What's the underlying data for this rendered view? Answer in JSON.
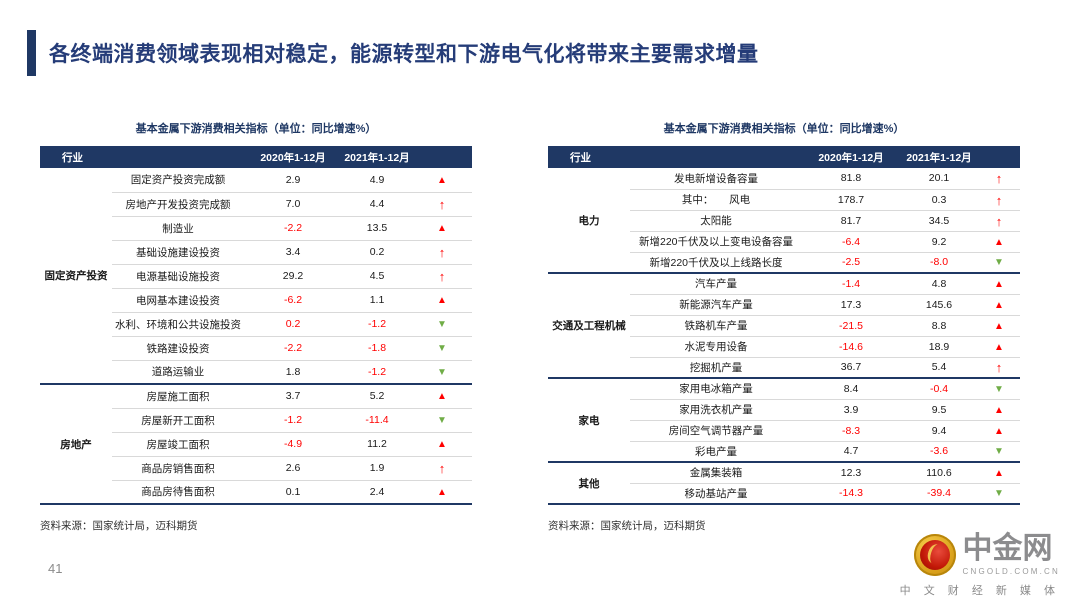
{
  "slide": {
    "title": "各终端消费领域表现相对稳定，能源转型和下游电气化将带来主要需求增量",
    "page_number": "41"
  },
  "colors": {
    "navy_header": "#1F3864",
    "title_blue": "#253C78",
    "up_arrow_red": "#FF0000",
    "down_arrow_green": "#70AD47"
  },
  "tables": [
    {
      "title": "基本金属下游消费相关指标（单位：同比增速%）",
      "col_headers": [
        "行业",
        "2020年1-12月",
        "2021年1-12月"
      ],
      "source": "资料来源：国家统计局，迈科期货",
      "groups": [
        {
          "name": "固定资产投资",
          "rows": [
            {
              "label": "固定资产投资完成额",
              "y2020": "2.9",
              "y2021": "4.9",
              "trend": "up-bold"
            },
            {
              "label": "房地产开发投资完成额",
              "y2020": "7.0",
              "y2021": "4.4",
              "trend": "up-thin"
            },
            {
              "label": "制造业",
              "y2020": "-2.2",
              "y2021": "13.5",
              "trend": "up-bold"
            },
            {
              "label": "基础设施建设投资",
              "y2020": "3.4",
              "y2021": "0.2",
              "trend": "up-thin"
            },
            {
              "label": "电源基础设施投资",
              "y2020": "29.2",
              "y2021": "4.5",
              "trend": "up-thin"
            },
            {
              "label": "电网基本建设投资",
              "y2020": "-6.2",
              "y2021": "1.1",
              "trend": "up-bold"
            },
            {
              "label": "水利、环境和公共设施投资",
              "y2020": "0.2",
              "red2020": true,
              "y2021": "-1.2",
              "trend": "down-bold"
            },
            {
              "label": "铁路建设投资",
              "y2020": "-2.2",
              "y2021": "-1.8",
              "trend": "down-bold"
            },
            {
              "label": "道路运输业",
              "y2020": "1.8",
              "y2021": "-1.2",
              "trend": "down-bold"
            }
          ]
        },
        {
          "name": "房地产",
          "rows": [
            {
              "label": "房屋施工面积",
              "y2020": "3.7",
              "y2021": "5.2",
              "trend": "up-bold"
            },
            {
              "label": "房屋新开工面积",
              "y2020": "-1.2",
              "y2021": "-11.4",
              "trend": "down-bold"
            },
            {
              "label": "房屋竣工面积",
              "y2020": "-4.9",
              "y2021": "11.2",
              "trend": "up-bold"
            },
            {
              "label": "商品房销售面积",
              "y2020": "2.6",
              "y2021": "1.9",
              "trend": "up-thin"
            },
            {
              "label": "商品房待售面积",
              "y2020": "0.1",
              "y2021": "2.4",
              "trend": "up-bold"
            }
          ]
        }
      ]
    },
    {
      "title": "基本金属下游消费相关指标（单位：同比增速%）",
      "col_headers": [
        "行业",
        "2020年1-12月",
        "2021年1-12月"
      ],
      "source": "资料来源：国家统计局，迈科期货",
      "groups": [
        {
          "name": "电力",
          "rows": [
            {
              "label": "发电新增设备容量",
              "y2020": "81.8",
              "y2021": "20.1",
              "trend": "up-thin"
            },
            {
              "label": "其中：　　风电",
              "y2020": "178.7",
              "y2021": "0.3",
              "trend": "up-thin"
            },
            {
              "label": "太阳能",
              "y2020": "81.7",
              "y2021": "34.5",
              "trend": "up-thin"
            },
            {
              "label": "新增220千伏及以上变电设备容量",
              "y2020": "-6.4",
              "y2021": "9.2",
              "trend": "up-bold"
            },
            {
              "label": "新增220千伏及以上线路长度",
              "y2020": "-2.5",
              "y2021": "-8.0",
              "trend": "down-bold"
            }
          ]
        },
        {
          "name": "交通及工程机械",
          "rows": [
            {
              "label": "汽车产量",
              "y2020": "-1.4",
              "y2021": "4.8",
              "trend": "up-bold"
            },
            {
              "label": "新能源汽车产量",
              "y2020": "17.3",
              "y2021": "145.6",
              "trend": "up-bold"
            },
            {
              "label": "铁路机车产量",
              "y2020": "-21.5",
              "y2021": "8.8",
              "trend": "up-bold"
            },
            {
              "label": "水泥专用设备",
              "y2020": "-14.6",
              "y2021": "18.9",
              "trend": "up-bold"
            },
            {
              "label": "挖掘机产量",
              "y2020": "36.7",
              "y2021": "5.4",
              "trend": "up-thin"
            }
          ]
        },
        {
          "name": "家电",
          "rows": [
            {
              "label": "家用电冰箱产量",
              "y2020": "8.4",
              "y2021": "-0.4",
              "trend": "down-bold"
            },
            {
              "label": "家用洗衣机产量",
              "y2020": "3.9",
              "y2021": "9.5",
              "trend": "up-bold"
            },
            {
              "label": "房间空气调节器产量",
              "y2020": "-8.3",
              "y2021": "9.4",
              "trend": "up-bold"
            },
            {
              "label": "彩电产量",
              "y2020": "4.7",
              "y2021": "-3.6",
              "trend": "down-bold"
            }
          ]
        },
        {
          "name": "其他",
          "rows": [
            {
              "label": "金属集装箱",
              "y2020": "12.3",
              "y2021": "110.6",
              "trend": "up-bold"
            },
            {
              "label": "移动基站产量",
              "y2020": "-14.3",
              "y2021": "-39.4",
              "trend": "down-bold"
            }
          ]
        }
      ]
    }
  ],
  "logo": {
    "brand": "中金网",
    "domain": "CNGOLD.COM.CN",
    "tagline": "中 文 财 经 新 媒 体"
  }
}
